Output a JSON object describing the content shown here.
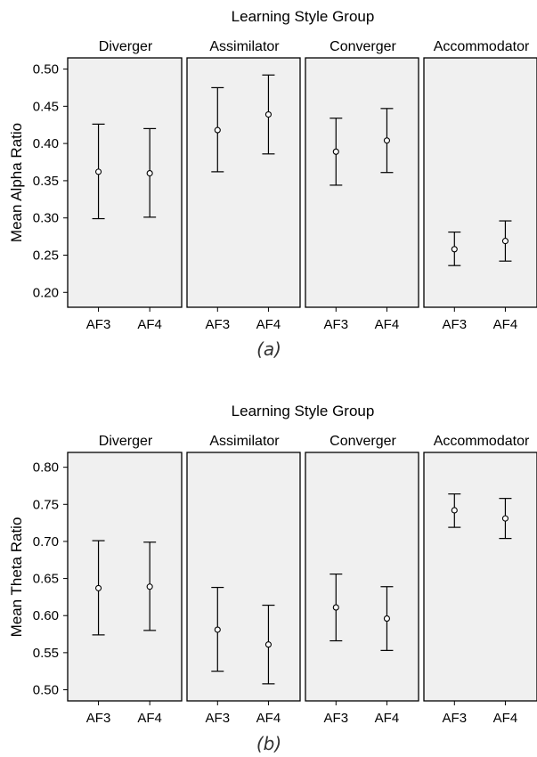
{
  "chart_data": [
    {
      "type": "errorbar",
      "facet_title": "Learning Style Group",
      "ylabel": "Mean Alpha Ratio",
      "caption": "(a)",
      "ylim": [
        0.18,
        0.515
      ],
      "yticks": [
        "0.20",
        "0.25",
        "0.30",
        "0.35",
        "0.40",
        "0.45",
        "0.50"
      ],
      "categories": [
        "AF3",
        "AF4"
      ],
      "facets": [
        {
          "name": "Diverger",
          "points": [
            {
              "x": "AF3",
              "mean": 0.362,
              "low": 0.299,
              "high": 0.426
            },
            {
              "x": "AF4",
              "mean": 0.36,
              "low": 0.301,
              "high": 0.42
            }
          ]
        },
        {
          "name": "Assimilator",
          "points": [
            {
              "x": "AF3",
              "mean": 0.418,
              "low": 0.362,
              "high": 0.475
            },
            {
              "x": "AF4",
              "mean": 0.439,
              "low": 0.386,
              "high": 0.492
            }
          ]
        },
        {
          "name": "Converger",
          "points": [
            {
              "x": "AF3",
              "mean": 0.389,
              "low": 0.344,
              "high": 0.434
            },
            {
              "x": "AF4",
              "mean": 0.404,
              "low": 0.361,
              "high": 0.447
            }
          ]
        },
        {
          "name": "Accommodator",
          "points": [
            {
              "x": "AF3",
              "mean": 0.258,
              "low": 0.236,
              "high": 0.281
            },
            {
              "x": "AF4",
              "mean": 0.269,
              "low": 0.242,
              "high": 0.296
            }
          ]
        }
      ]
    },
    {
      "type": "errorbar",
      "facet_title": "Learning Style Group",
      "ylabel": "Mean Theta Ratio",
      "caption": "(b)",
      "ylim": [
        0.485,
        0.82
      ],
      "yticks": [
        "0.50",
        "0.55",
        "0.60",
        "0.65",
        "0.70",
        "0.75",
        "0.80"
      ],
      "categories": [
        "AF3",
        "AF4"
      ],
      "facets": [
        {
          "name": "Diverger",
          "points": [
            {
              "x": "AF3",
              "mean": 0.637,
              "low": 0.574,
              "high": 0.701
            },
            {
              "x": "AF4",
              "mean": 0.639,
              "low": 0.58,
              "high": 0.699
            }
          ]
        },
        {
          "name": "Assimilator",
          "points": [
            {
              "x": "AF3",
              "mean": 0.581,
              "low": 0.525,
              "high": 0.638
            },
            {
              "x": "AF4",
              "mean": 0.561,
              "low": 0.508,
              "high": 0.614
            }
          ]
        },
        {
          "name": "Converger",
          "points": [
            {
              "x": "AF3",
              "mean": 0.611,
              "low": 0.566,
              "high": 0.656
            },
            {
              "x": "AF4",
              "mean": 0.596,
              "low": 0.553,
              "high": 0.639
            }
          ]
        },
        {
          "name": "Accommodator",
          "points": [
            {
              "x": "AF3",
              "mean": 0.742,
              "low": 0.719,
              "high": 0.764
            },
            {
              "x": "AF4",
              "mean": 0.731,
              "low": 0.704,
              "high": 0.758
            }
          ]
        }
      ]
    }
  ]
}
